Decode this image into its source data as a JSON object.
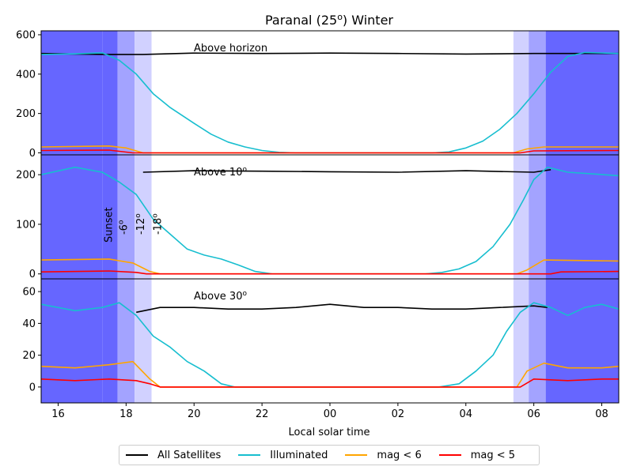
{
  "chart_data": {
    "type": "line",
    "title": "Paranal (25",
    "title_superscript": "o",
    "title_suffix": ") Winter",
    "xlabel": "Local solar time",
    "x_unit": "hours (local solar time, continuing past midnight)",
    "xlim": [
      15.5,
      32.5
    ],
    "x_ticks": [
      16,
      18,
      20,
      22,
      24,
      26,
      28,
      30,
      32
    ],
    "x_tick_labels": [
      "16",
      "18",
      "20",
      "22",
      "00",
      "02",
      "04",
      "06",
      "08"
    ],
    "twilight_bands": {
      "evening": {
        "sunset": 17.3,
        "civil": 17.75,
        "nautical": 18.25,
        "astronomical": 18.75
      },
      "morning": {
        "astronomical": 29.4,
        "nautical": 29.85,
        "civil": 30.35,
        "sunrise": 30.8
      },
      "colors": [
        "#6666ff",
        "#a3a3ff",
        "#d1d1ff"
      ],
      "labels": [
        "Sunset",
        "-6",
        "-12",
        "-18"
      ],
      "label_superscript": "o"
    },
    "panels": [
      {
        "label": "Above horizon",
        "label_superscript": "",
        "ylim": [
          -10,
          620
        ],
        "y_ticks": [
          0,
          200,
          400,
          600
        ],
        "series": [
          {
            "name": "All Satellites",
            "color": "#000000",
            "points": [
              [
                15.5,
                505
              ],
              [
                16.5,
                502
              ],
              [
                17.5,
                500
              ],
              [
                18.5,
                500
              ],
              [
                20,
                507
              ],
              [
                22,
                505
              ],
              [
                24,
                507
              ],
              [
                26,
                505
              ],
              [
                28,
                502
              ],
              [
                30,
                505
              ],
              [
                32.5,
                505
              ]
            ]
          },
          {
            "name": "Illuminated",
            "color": "#17becf",
            "points": [
              [
                15.5,
                500
              ],
              [
                16.5,
                503
              ],
              [
                17.3,
                508
              ],
              [
                17.8,
                470
              ],
              [
                18.3,
                400
              ],
              [
                18.8,
                300
              ],
              [
                19.3,
                230
              ],
              [
                20,
                150
              ],
              [
                20.5,
                95
              ],
              [
                21,
                55
              ],
              [
                21.5,
                30
              ],
              [
                22,
                12
              ],
              [
                22.5,
                3
              ],
              [
                23,
                0
              ],
              [
                27,
                0
              ],
              [
                27.5,
                5
              ],
              [
                28,
                25
              ],
              [
                28.5,
                60
              ],
              [
                29,
                120
              ],
              [
                29.5,
                200
              ],
              [
                30,
                300
              ],
              [
                30.5,
                410
              ],
              [
                31,
                490
              ],
              [
                31.5,
                510
              ],
              [
                32.5,
                505
              ]
            ]
          },
          {
            "name": "mag < 6",
            "color": "#ffa500",
            "points": [
              [
                15.5,
                30
              ],
              [
                17.5,
                35
              ],
              [
                18.0,
                25
              ],
              [
                18.5,
                0
              ],
              [
                29.4,
                0
              ],
              [
                29.8,
                20
              ],
              [
                30.3,
                30
              ],
              [
                32.5,
                30
              ]
            ]
          },
          {
            "name": "mag < 5",
            "color": "#ff0000",
            "points": [
              [
                15.5,
                12
              ],
              [
                17.5,
                14
              ],
              [
                18.2,
                0
              ],
              [
                29.6,
                0
              ],
              [
                30,
                10
              ],
              [
                32.5,
                12
              ]
            ]
          }
        ]
      },
      {
        "label": "Above 10",
        "label_superscript": "o",
        "ylim": [
          -10,
          240
        ],
        "y_ticks": [
          0,
          100,
          200
        ],
        "series": [
          {
            "name": "All Satellites",
            "color": "#000000",
            "points": [
              [
                18.5,
                205
              ],
              [
                20,
                208
              ],
              [
                22,
                207
              ],
              [
                24,
                206
              ],
              [
                26,
                205
              ],
              [
                28,
                208
              ],
              [
                30,
                205
              ],
              [
                30.5,
                210
              ]
            ]
          },
          {
            "name": "Illuminated",
            "color": "#17becf",
            "points": [
              [
                15.5,
                200
              ],
              [
                16.5,
                215
              ],
              [
                17.3,
                205
              ],
              [
                17.8,
                185
              ],
              [
                18.3,
                160
              ],
              [
                18.8,
                110
              ],
              [
                19.3,
                80
              ],
              [
                19.8,
                50
              ],
              [
                20.3,
                38
              ],
              [
                20.8,
                30
              ],
              [
                21.3,
                18
              ],
              [
                21.8,
                5
              ],
              [
                22.3,
                0
              ],
              [
                26.8,
                0
              ],
              [
                27.3,
                3
              ],
              [
                27.8,
                10
              ],
              [
                28.3,
                25
              ],
              [
                28.8,
                55
              ],
              [
                29.3,
                100
              ],
              [
                29.7,
                150
              ],
              [
                30.0,
                190
              ],
              [
                30.4,
                215
              ],
              [
                31,
                205
              ],
              [
                32.5,
                198
              ]
            ]
          },
          {
            "name": "mag < 6",
            "color": "#ffa500",
            "points": [
              [
                15.5,
                28
              ],
              [
                17.5,
                30
              ],
              [
                18.2,
                22
              ],
              [
                18.7,
                5
              ],
              [
                19,
                0
              ],
              [
                29.5,
                0
              ],
              [
                29.8,
                8
              ],
              [
                30.3,
                28
              ],
              [
                32.5,
                26
              ]
            ]
          },
          {
            "name": "mag < 5",
            "color": "#ff0000",
            "points": [
              [
                15.5,
                4
              ],
              [
                17.5,
                6
              ],
              [
                18.3,
                3
              ],
              [
                18.6,
                0
              ],
              [
                30.5,
                0
              ],
              [
                30.8,
                4
              ],
              [
                32.5,
                5
              ]
            ]
          }
        ]
      },
      {
        "label": "Above 30",
        "label_superscript": "o",
        "ylim": [
          -10,
          68
        ],
        "y_ticks": [
          0,
          20,
          40,
          60
        ],
        "series": [
          {
            "name": "All Satellites",
            "color": "#000000",
            "points": [
              [
                18.3,
                47
              ],
              [
                19,
                50
              ],
              [
                20,
                50
              ],
              [
                21,
                49
              ],
              [
                22,
                49
              ],
              [
                23,
                50
              ],
              [
                24,
                52
              ],
              [
                25,
                50
              ],
              [
                26,
                50
              ],
              [
                27,
                49
              ],
              [
                28,
                49
              ],
              [
                29,
                50
              ],
              [
                30,
                51
              ],
              [
                30.4,
                50
              ]
            ]
          },
          {
            "name": "Illuminated",
            "color": "#17becf",
            "points": [
              [
                15.5,
                52
              ],
              [
                16.5,
                48
              ],
              [
                17.3,
                50
              ],
              [
                17.8,
                53
              ],
              [
                18.3,
                45
              ],
              [
                18.8,
                32
              ],
              [
                19.3,
                25
              ],
              [
                19.8,
                16
              ],
              [
                20.3,
                10
              ],
              [
                20.8,
                2
              ],
              [
                21.2,
                0
              ],
              [
                27.2,
                0
              ],
              [
                27.8,
                2
              ],
              [
                28.3,
                10
              ],
              [
                28.8,
                20
              ],
              [
                29.2,
                35
              ],
              [
                29.6,
                47
              ],
              [
                30,
                53
              ],
              [
                30.5,
                50
              ],
              [
                31,
                45
              ],
              [
                31.5,
                50
              ],
              [
                32.0,
                52
              ],
              [
                32.5,
                49
              ]
            ]
          },
          {
            "name": "mag < 6",
            "color": "#ffa500",
            "points": [
              [
                15.5,
                13
              ],
              [
                16.5,
                12
              ],
              [
                17.5,
                14
              ],
              [
                18.2,
                16
              ],
              [
                18.7,
                5
              ],
              [
                19,
                0
              ],
              [
                29.5,
                0
              ],
              [
                29.8,
                10
              ],
              [
                30.3,
                15
              ],
              [
                31,
                12
              ],
              [
                32,
                12
              ],
              [
                32.5,
                13
              ]
            ]
          },
          {
            "name": "mag < 5",
            "color": "#ff0000",
            "points": [
              [
                15.5,
                5
              ],
              [
                16.5,
                4
              ],
              [
                17.5,
                5
              ],
              [
                18.3,
                4
              ],
              [
                18.7,
                2
              ],
              [
                19,
                0
              ],
              [
                29.6,
                0
              ],
              [
                30,
                5
              ],
              [
                31,
                4
              ],
              [
                32,
                5
              ],
              [
                32.5,
                5
              ]
            ]
          }
        ]
      }
    ],
    "legend": {
      "position": "bottom-center",
      "entries": [
        {
          "name": "All Satellites",
          "color": "#000000"
        },
        {
          "name": "Illuminated",
          "color": "#17becf"
        },
        {
          "name": "mag < 6",
          "color": "#ffa500"
        },
        {
          "name": "mag < 5",
          "color": "#ff0000"
        }
      ]
    },
    "grid": false
  }
}
